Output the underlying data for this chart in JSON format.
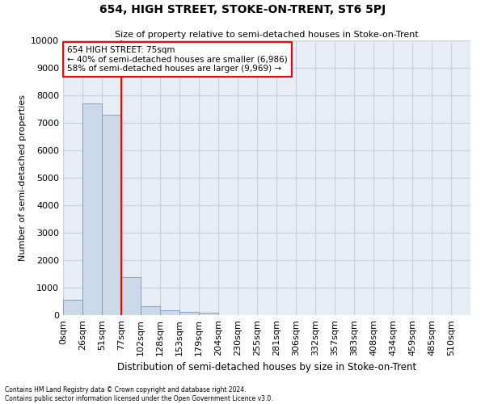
{
  "title": "654, HIGH STREET, STOKE-ON-TRENT, ST6 5PJ",
  "subtitle": "Size of property relative to semi-detached houses in Stoke-on-Trent",
  "xlabel": "Distribution of semi-detached houses by size in Stoke-on-Trent",
  "ylabel": "Number of semi-detached properties",
  "footer_line1": "Contains HM Land Registry data © Crown copyright and database right 2024.",
  "footer_line2": "Contains public sector information licensed under the Open Government Licence v3.0.",
  "bar_labels": [
    "0sqm",
    "26sqm",
    "51sqm",
    "77sqm",
    "102sqm",
    "128sqm",
    "153sqm",
    "179sqm",
    "204sqm",
    "230sqm",
    "255sqm",
    "281sqm",
    "306sqm",
    "332sqm",
    "357sqm",
    "383sqm",
    "408sqm",
    "434sqm",
    "459sqm",
    "485sqm",
    "510sqm"
  ],
  "bar_values": [
    550,
    7700,
    7300,
    1380,
    320,
    170,
    120,
    90,
    0,
    0,
    0,
    0,
    0,
    0,
    0,
    0,
    0,
    0,
    0,
    0,
    0
  ],
  "bar_color": "#ccd9e8",
  "bar_edge_color": "#7799bb",
  "annotation_text": "654 HIGH STREET: 75sqm\n← 40% of semi-detached houses are smaller (6,986)\n58% of semi-detached houses are larger (9,969) →",
  "annotation_box_color": "white",
  "annotation_box_edge_color": "red",
  "vline_color": "red",
  "vline_x": 3.0,
  "ylim": [
    0,
    10000
  ],
  "yticks": [
    0,
    1000,
    2000,
    3000,
    4000,
    5000,
    6000,
    7000,
    8000,
    9000,
    10000
  ],
  "grid_color": "#c8d0dc",
  "background_color": "#e8ecf4"
}
